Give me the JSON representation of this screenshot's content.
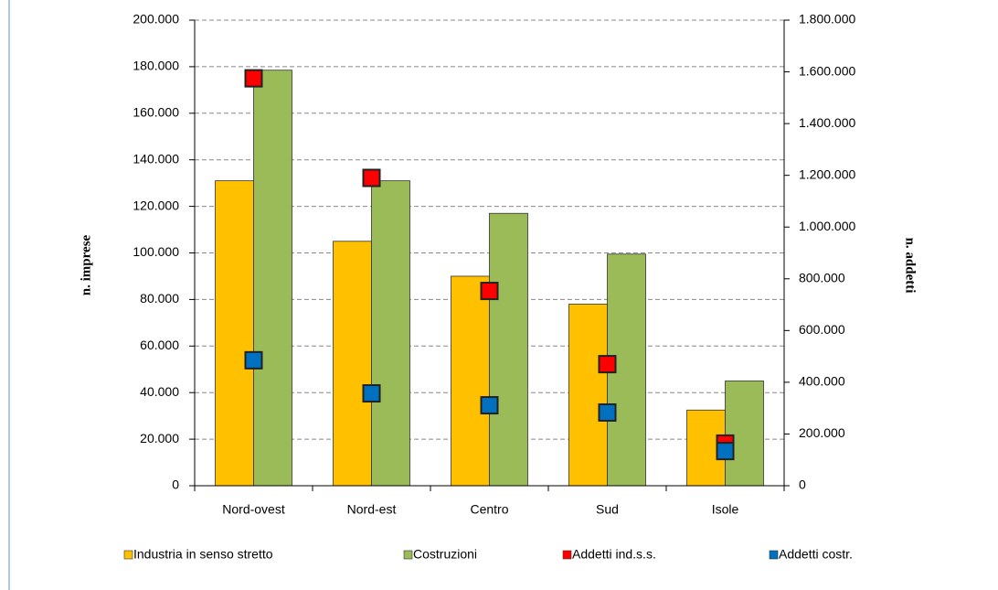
{
  "chart_data": {
    "type": "bar",
    "categories": [
      "Nord-ovest",
      "Nord-est",
      "Centro",
      "Sud",
      "Isole"
    ],
    "series": [
      {
        "name": "Industria in senso stretto",
        "color": "#ffc000",
        "type": "bar",
        "values": [
          131000,
          105000,
          90000,
          78000,
          32500
        ]
      },
      {
        "name": "Costruzioni",
        "color": "#9bbb59",
        "type": "bar",
        "values": [
          178500,
          131000,
          117000,
          99500,
          45000
        ]
      },
      {
        "name": "Addetti ind.s.s.",
        "color": "#ff0000",
        "type": "marker",
        "axis": "y2",
        "values": [
          1575000,
          1190000,
          753000,
          470000,
          163000
        ]
      },
      {
        "name": "Addetti costr.",
        "color": "#0070c0",
        "type": "marker",
        "axis": "y2",
        "values": [
          485000,
          357000,
          311000,
          283000,
          134000
        ]
      }
    ],
    "ylabel": "n. imprese",
    "y2label": "n. addetti",
    "ylim": [
      0,
      200000
    ],
    "yticks": [
      0,
      {
        "value": 20000,
        "label": "20.000"
      },
      {
        "value": 40000,
        "label": "40.000"
      },
      {
        "value": 60000,
        "label": "60.000"
      },
      {
        "value": 80000,
        "label": "80.000"
      },
      {
        "value": 100000,
        "label": "100.000"
      },
      {
        "value": 120000,
        "label": "120.000"
      },
      {
        "value": 140000,
        "label": "140.000"
      },
      {
        "value": 160000,
        "label": "160.000"
      },
      {
        "value": 180000,
        "label": "180.000"
      },
      {
        "value": 200000,
        "label": "200.000"
      }
    ],
    "y2lim": [
      0,
      1800000
    ],
    "y2ticks": [
      0,
      {
        "value": 200000,
        "label": "200.000"
      },
      {
        "value": 400000,
        "label": "400.000"
      },
      {
        "value": 600000,
        "label": "600.000"
      },
      {
        "value": 800000,
        "label": "800.000"
      },
      {
        "value": 1000000,
        "label": "1.000.000"
      },
      {
        "value": 1200000,
        "label": "1.200.000"
      },
      {
        "value": 1400000,
        "label": "1.400.000"
      },
      {
        "value": 1600000,
        "label": "1.600.000"
      },
      {
        "value": 1800000,
        "label": "1.800.000"
      }
    ],
    "grid": true
  }
}
